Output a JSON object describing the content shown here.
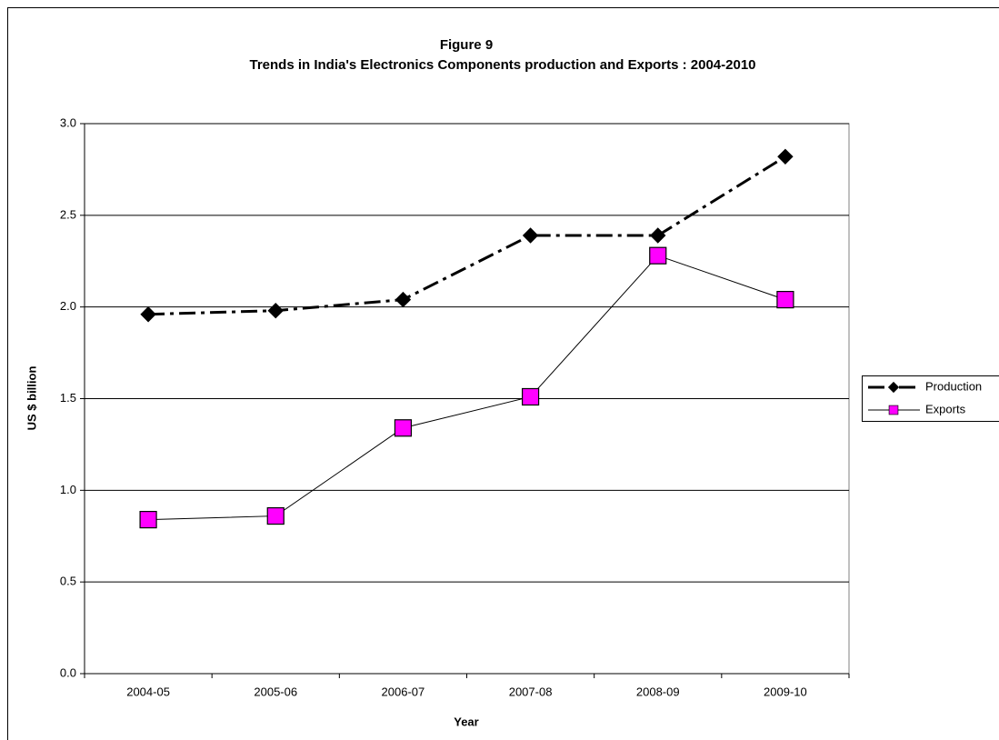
{
  "chart_data": {
    "type": "line",
    "title": "Figure 9",
    "subtitle": "Trends in India's Electronics Components production and Exports : 2004-2010",
    "x_label": "Year",
    "y_label": "US $ billion",
    "categories": [
      "2004-05",
      "2005-06",
      "2006-07",
      "2007-08",
      "2008-09",
      "2009-10"
    ],
    "series": [
      {
        "name": "Production",
        "color": "#000000",
        "marker": "diamond",
        "dash": "dash-dot",
        "values": [
          1.96,
          1.98,
          2.04,
          2.39,
          2.39,
          2.82
        ]
      },
      {
        "name": "Exports",
        "color": "#ff00ff",
        "marker": "square",
        "dash": "solid",
        "values": [
          0.84,
          0.86,
          1.34,
          1.51,
          2.28,
          2.04
        ]
      }
    ],
    "ylim": [
      0,
      3
    ],
    "yticks": [
      {
        "value": 0,
        "label": "0.0"
      },
      0.5,
      {
        "value": 1,
        "label": "1.0"
      },
      1.5,
      {
        "value": 2,
        "label": "2.0"
      },
      2.5,
      {
        "value": 3,
        "label": "3.0"
      }
    ],
    "grid": true,
    "legend": "right"
  }
}
